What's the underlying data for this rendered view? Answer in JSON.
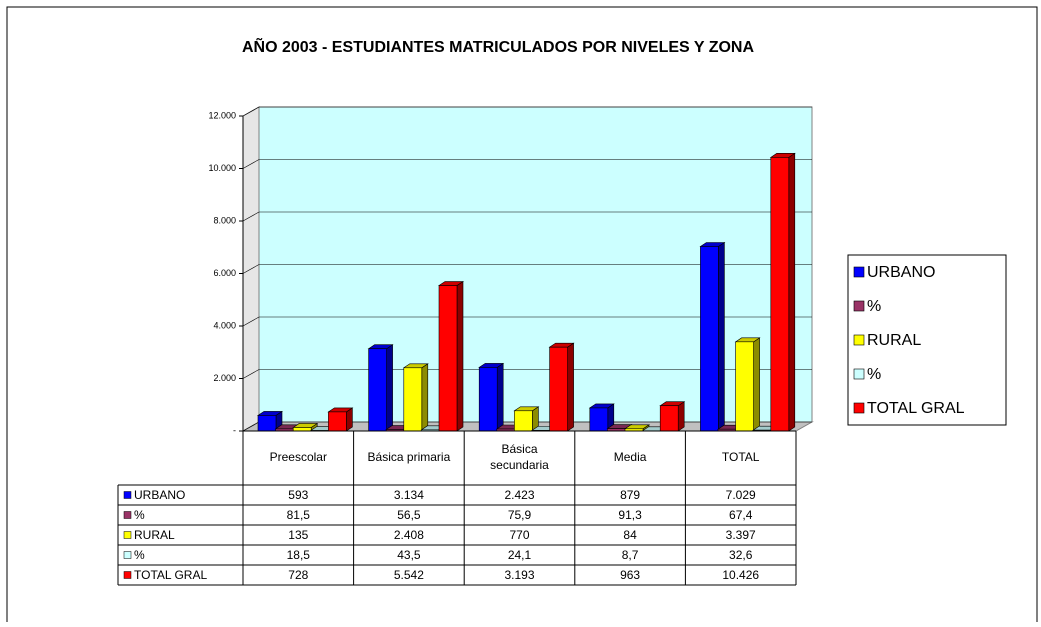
{
  "chart_data": {
    "type": "bar3d",
    "title": "AÑO 2003 - ESTUDIANTES MATRICULADOS POR NIVELES Y ZONA",
    "categories": [
      "Preescolar",
      "Básica primaria",
      "Básica secundaria",
      "Media",
      "TOTAL"
    ],
    "series": [
      {
        "name": "URBANO",
        "color": "#0000ff",
        "values": [
          593,
          3134,
          2423,
          879,
          7029
        ],
        "value_labels": [
          "593",
          "3.134",
          "2.423",
          "879",
          "7.029"
        ]
      },
      {
        "name": "%",
        "color": "#993366",
        "values": [
          81.5,
          56.5,
          75.9,
          91.3,
          67.4
        ],
        "value_labels": [
          "81,5",
          "56,5",
          "75,9",
          "91,3",
          "67,4"
        ]
      },
      {
        "name": "RURAL",
        "color": "#ffff00",
        "values": [
          135,
          2408,
          770,
          84,
          3397
        ],
        "value_labels": [
          "135",
          "2.408",
          "770",
          "84",
          "3.397"
        ]
      },
      {
        "name": "%",
        "color": "#ccffff",
        "values": [
          18.5,
          43.5,
          24.1,
          8.7,
          32.6
        ],
        "value_labels": [
          "18,5",
          "43,5",
          "24,1",
          "8,7",
          "32,6"
        ]
      },
      {
        "name": "TOTAL GRAL",
        "color": "#ff0000",
        "values": [
          728,
          5542,
          3193,
          963,
          10426
        ],
        "value_labels": [
          "728",
          "5.542",
          "3.193",
          "963",
          "10.426"
        ]
      }
    ],
    "ylim": [
      0,
      12000
    ],
    "yticks": [
      {
        "value": 0,
        "label": "-"
      },
      {
        "value": 2000,
        "label": "2.000"
      },
      {
        "value": 4000,
        "label": "4.000"
      },
      {
        "value": 6000,
        "label": "6.000"
      },
      {
        "value": 8000,
        "label": "8.000"
      },
      {
        "value": 10000,
        "label": "10.000"
      },
      {
        "value": 12000,
        "label": "12.000"
      }
    ],
    "grid": true,
    "legend": "right"
  }
}
